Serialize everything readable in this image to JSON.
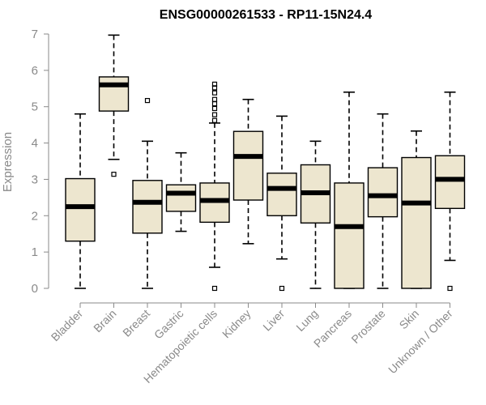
{
  "chart_data": {
    "type": "box",
    "title": "ENSG00000261533 - RP11-15N24.4",
    "xlabel": "",
    "ylabel": "Expression",
    "ylim": [
      0,
      7
    ],
    "yticks": [
      0,
      1,
      2,
      3,
      4,
      5,
      6,
      7
    ],
    "box_fill": "#ede6cf",
    "categories": [
      "Bladder",
      "Brain",
      "Breast",
      "Gastric",
      "Hematopoietic cells",
      "Kidney",
      "Liver",
      "Lung",
      "Pancreas",
      "Prostate",
      "Skin",
      "Unknown / Other"
    ],
    "boxes": [
      {
        "min": 0.0,
        "q1": 1.3,
        "median": 2.25,
        "q3": 3.02,
        "max": 4.8,
        "outliers": []
      },
      {
        "min": 3.55,
        "q1": 4.88,
        "median": 5.6,
        "q3": 5.82,
        "max": 6.97,
        "outliers": [
          3.14
        ]
      },
      {
        "min": 0.0,
        "q1": 1.52,
        "median": 2.37,
        "q3": 2.97,
        "max": 4.05,
        "outliers": [
          5.17
        ]
      },
      {
        "min": 1.57,
        "q1": 2.12,
        "median": 2.62,
        "q3": 2.85,
        "max": 3.73,
        "outliers": []
      },
      {
        "min": 0.58,
        "q1": 1.82,
        "median": 2.42,
        "q3": 2.9,
        "max": 4.55,
        "outliers": [
          0.0,
          4.62,
          4.78,
          4.95,
          5.08,
          5.2,
          5.38,
          5.52,
          5.62
        ]
      },
      {
        "min": 1.23,
        "q1": 2.43,
        "median": 3.63,
        "q3": 4.32,
        "max": 5.2,
        "outliers": []
      },
      {
        "min": 0.81,
        "q1": 2.0,
        "median": 2.75,
        "q3": 3.17,
        "max": 4.74,
        "outliers": [
          0.0
        ]
      },
      {
        "min": 0.0,
        "q1": 1.8,
        "median": 2.63,
        "q3": 3.4,
        "max": 4.05,
        "outliers": []
      },
      {
        "min": 0.0,
        "q1": 0.0,
        "median": 1.7,
        "q3": 2.9,
        "max": 5.4,
        "outliers": []
      },
      {
        "min": 0.0,
        "q1": 1.97,
        "median": 2.55,
        "q3": 3.32,
        "max": 4.8,
        "outliers": []
      },
      {
        "min": 0.0,
        "q1": 0.0,
        "median": 2.35,
        "q3": 3.6,
        "max": 4.33,
        "outliers": []
      },
      {
        "min": 0.77,
        "q1": 2.2,
        "median": 3.0,
        "q3": 3.65,
        "max": 5.4,
        "outliers": [
          0.0
        ]
      }
    ]
  }
}
